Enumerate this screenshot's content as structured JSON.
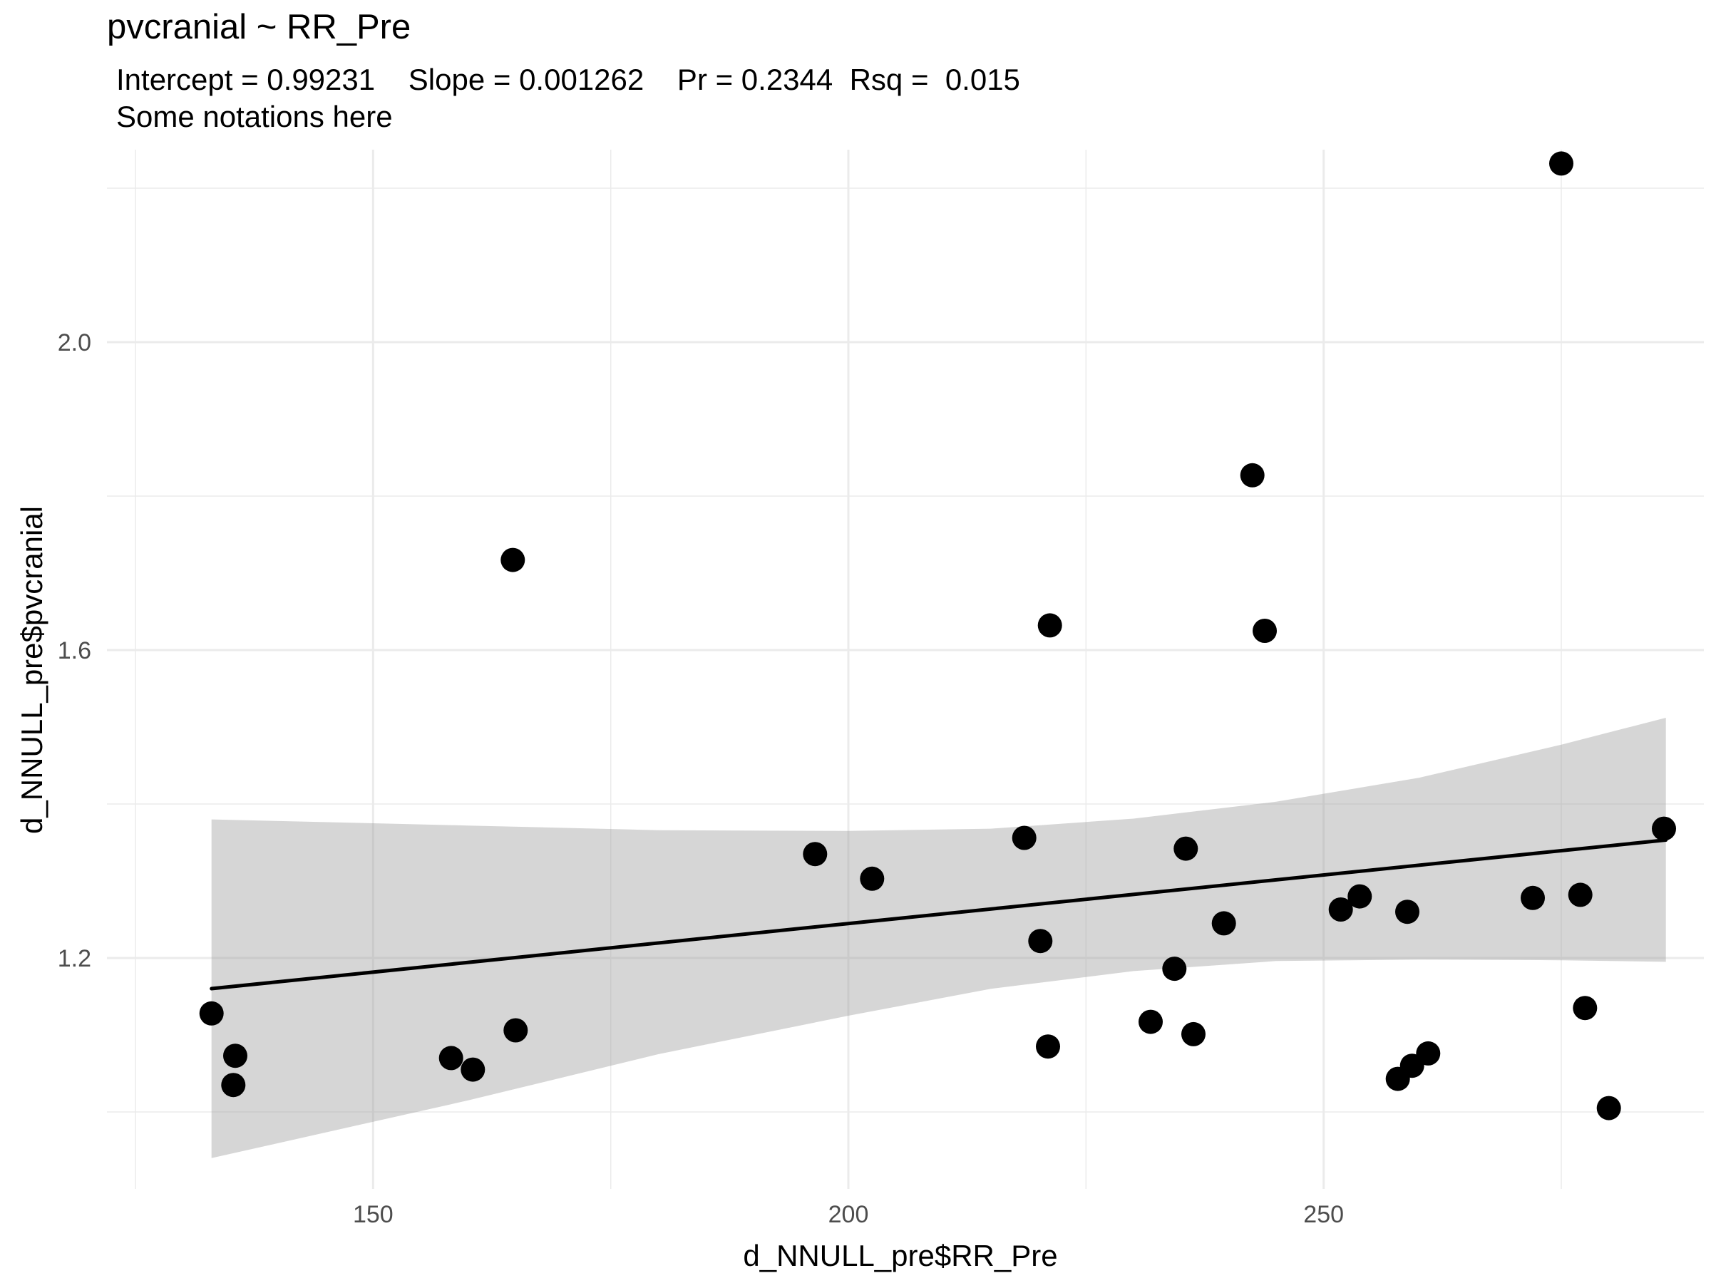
{
  "chart_data": {
    "type": "scatter",
    "title": "pvcranial ~ RR_Pre",
    "subtitle_line1": "Intercept = 0.99231    Slope = 0.001262    Pr = 0.2344  Rsq =  0.015",
    "subtitle_line2": "Some notations here",
    "xlabel": "d_NNULL_pre$RR_Pre",
    "ylabel": "d_NNULL_pre$pvcranial",
    "xlim": [
      122,
      290
    ],
    "ylim": [
      0.9,
      2.25
    ],
    "x_ticks": [
      150,
      200,
      250
    ],
    "x_tick_labels": [
      "150",
      "200",
      "250"
    ],
    "y_ticks": [
      1.2,
      1.6,
      2.0
    ],
    "y_tick_labels": [
      "1.2",
      "1.6",
      "2.0"
    ],
    "grid": true,
    "regression": {
      "intercept": 0.99231,
      "slope": 0.001262,
      "x_range": [
        133,
        286
      ],
      "ci_lower": [
        [
          133,
          0.94
        ],
        [
          160,
          1.015
        ],
        [
          180,
          1.075
        ],
        [
          200,
          1.125
        ],
        [
          215,
          1.16
        ],
        [
          230,
          1.183
        ],
        [
          245,
          1.196
        ],
        [
          260,
          1.198
        ],
        [
          275,
          1.197
        ],
        [
          286,
          1.195
        ]
      ],
      "ci_upper": [
        [
          133,
          1.38
        ],
        [
          160,
          1.372
        ],
        [
          180,
          1.366
        ],
        [
          200,
          1.365
        ],
        [
          215,
          1.368
        ],
        [
          230,
          1.381
        ],
        [
          245,
          1.403
        ],
        [
          260,
          1.434
        ],
        [
          275,
          1.477
        ],
        [
          286,
          1.512
        ]
      ]
    },
    "points": [
      [
        133.0,
        1.128
      ],
      [
        135.5,
        1.073
      ],
      [
        135.3,
        1.035
      ],
      [
        164.7,
        1.717
      ],
      [
        158.2,
        1.07
      ],
      [
        160.5,
        1.055
      ],
      [
        165.0,
        1.106
      ],
      [
        196.5,
        1.335
      ],
      [
        202.5,
        1.303
      ],
      [
        218.5,
        1.356
      ],
      [
        220.2,
        1.222
      ],
      [
        221.2,
        1.632
      ],
      [
        221.0,
        1.085
      ],
      [
        231.8,
        1.117
      ],
      [
        234.3,
        1.186
      ],
      [
        235.5,
        1.342
      ],
      [
        236.3,
        1.101
      ],
      [
        239.5,
        1.245
      ],
      [
        242.5,
        1.827
      ],
      [
        243.8,
        1.625
      ],
      [
        251.8,
        1.263
      ],
      [
        253.8,
        1.28
      ],
      [
        257.8,
        1.043
      ],
      [
        259.3,
        1.06
      ],
      [
        258.8,
        1.26
      ],
      [
        261.0,
        1.076
      ],
      [
        272.0,
        1.278
      ],
      [
        275.0,
        2.232
      ],
      [
        277.0,
        1.282
      ],
      [
        277.5,
        1.135
      ],
      [
        280.0,
        1.005
      ],
      [
        285.8,
        1.368
      ]
    ]
  }
}
